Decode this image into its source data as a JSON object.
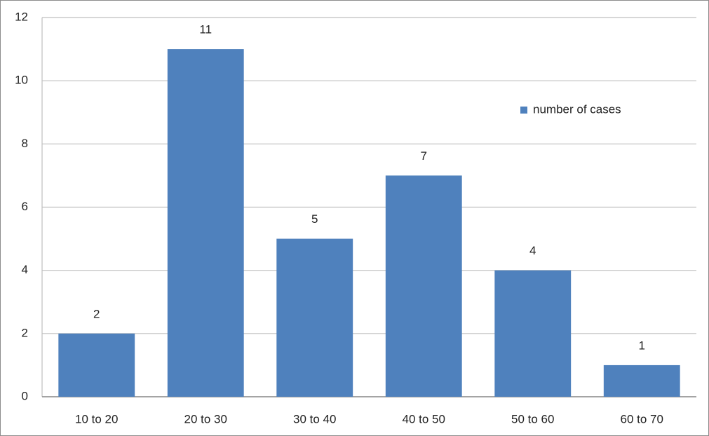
{
  "chart_data": {
    "type": "bar",
    "categories": [
      "10 to 20",
      "20 to 30",
      "30 to 40",
      "40 to 50",
      "50 to 60",
      "60 to 70"
    ],
    "series": [
      {
        "name": "number of cases",
        "color": "#4f81bd",
        "values": [
          2,
          11,
          5,
          7,
          4,
          1
        ]
      }
    ],
    "ylim": [
      0,
      12
    ],
    "yticks": [
      0,
      2,
      4,
      6,
      8,
      10,
      12
    ],
    "grid": true,
    "data_labels": true,
    "legend": "right"
  }
}
